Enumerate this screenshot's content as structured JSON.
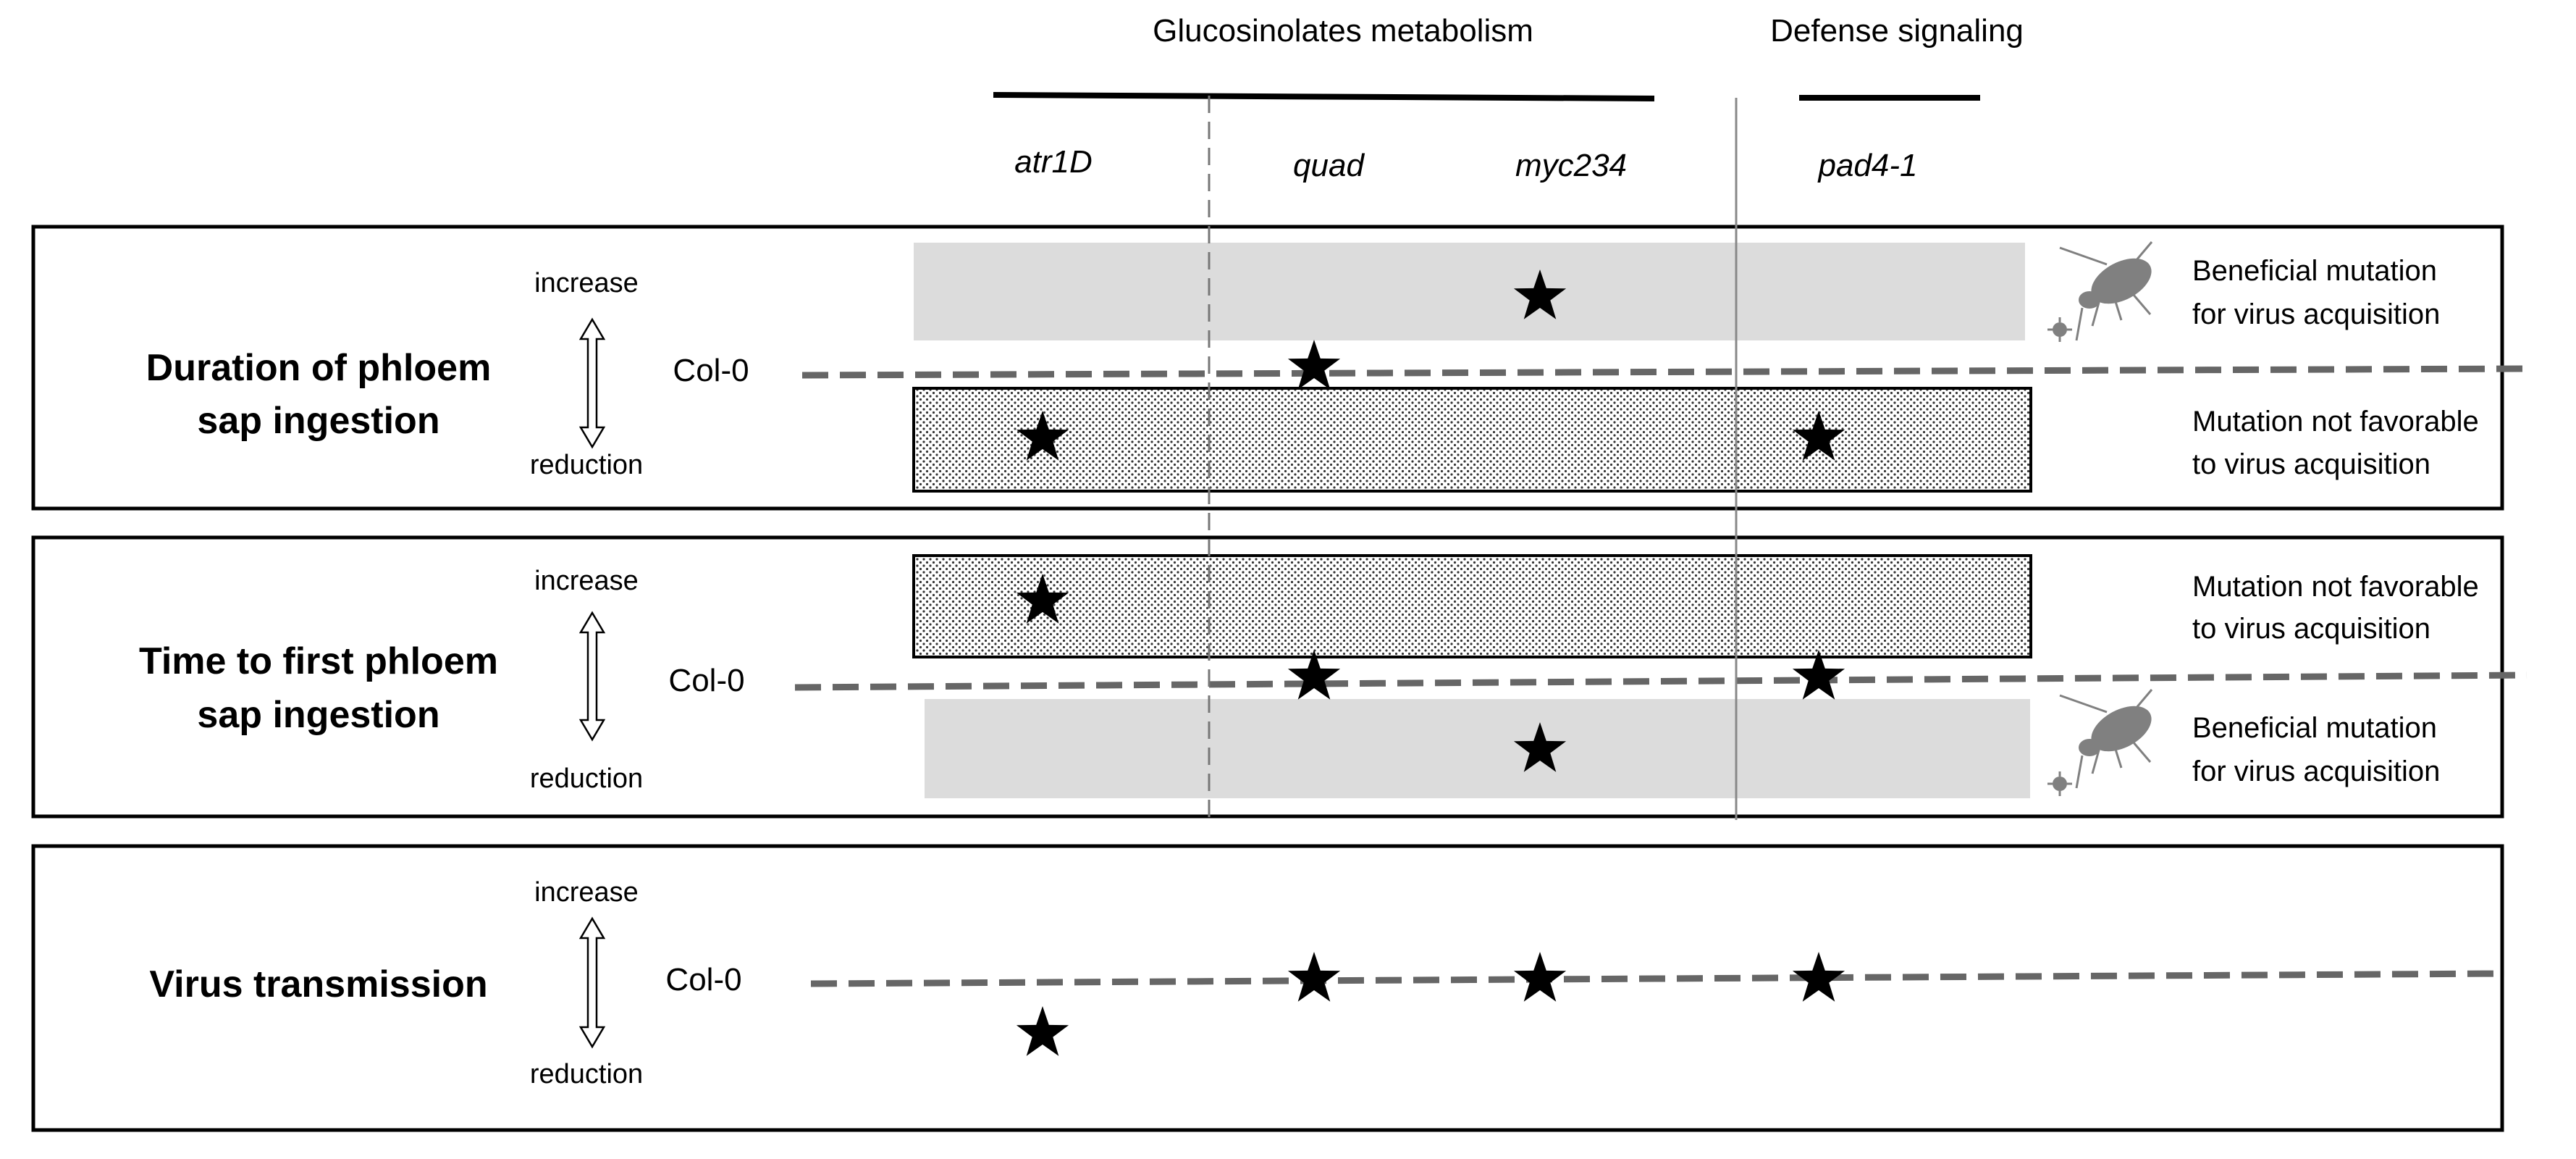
{
  "header": {
    "groups": [
      {
        "label": "Glucosinolates metabolism"
      },
      {
        "label": "Defense signaling"
      }
    ],
    "genotypes": [
      "atr1D",
      "quad",
      "myc234",
      "pad4-1"
    ]
  },
  "legend_labels": {
    "beneficial": [
      "Beneficial mutation",
      "for virus acquisition"
    ],
    "not_favorable": [
      "Mutation not favorable",
      "to virus acquisition"
    ]
  },
  "panels": [
    {
      "title": [
        "Duration of phloem",
        "sap ingestion"
      ],
      "increase": "increase",
      "reduction": "reduction",
      "baseline": "Col-0",
      "upper_region": "beneficial",
      "lower_region": "not_favorable",
      "positions": {
        "atr1D": "reduction",
        "quad": "baseline",
        "myc234": "increase",
        "pad4-1": "reduction"
      }
    },
    {
      "title": [
        "Time to first phloem",
        "sap ingestion"
      ],
      "increase": "increase",
      "reduction": "reduction",
      "baseline": "Col-0",
      "upper_region": "not_favorable",
      "lower_region": "beneficial",
      "positions": {
        "atr1D": "increase",
        "quad": "baseline",
        "myc234": "reduction",
        "pad4-1": "baseline"
      }
    },
    {
      "title": [
        "Virus transmission"
      ],
      "increase": "increase",
      "reduction": "reduction",
      "baseline": "Col-0",
      "positions": {
        "atr1D": "reduction",
        "quad": "baseline",
        "myc234": "baseline",
        "pad4-1": "baseline"
      }
    }
  ],
  "colors": {
    "beneficial_fill": "#dcdcdc",
    "dashed_line": "#666666",
    "insect": "#808080",
    "star": "#000000"
  },
  "icons": [
    "aphid-icon",
    "virus-icon",
    "star-icon",
    "double-arrow-icon"
  ]
}
